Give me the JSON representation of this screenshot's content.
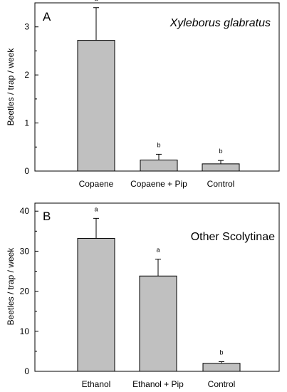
{
  "chart_data": [
    {
      "type": "bar",
      "panel_label": "A",
      "title": "Xyleborus glabratus",
      "title_italic": true,
      "ylabel": "Beetles / trap / week",
      "categories": [
        "Copaene",
        "Copaene + Pip",
        "Control"
      ],
      "values": [
        2.72,
        0.23,
        0.15
      ],
      "errors": [
        0.68,
        0.12,
        0.07
      ],
      "significance": [
        "a",
        "b",
        "b"
      ],
      "ylim": [
        0,
        3.5
      ],
      "yticks": [
        0,
        1,
        2,
        3
      ],
      "yticks_minor": [
        0.5,
        1.5,
        2.5
      ],
      "bar_color": "#c0c0c0",
      "grid": false
    },
    {
      "type": "bar",
      "panel_label": "B",
      "title": "Other Scolytinae",
      "title_italic": false,
      "ylabel": "Beetles / trap / week",
      "categories": [
        "Ethanol",
        "Ethanol + Pip",
        "Control"
      ],
      "values": [
        33.2,
        23.8,
        2.0
      ],
      "errors": [
        5.0,
        4.2,
        0.4
      ],
      "significance": [
        "a",
        "a",
        "b"
      ],
      "ylim": [
        0,
        42
      ],
      "yticks": [
        0,
        10,
        20,
        30,
        40
      ],
      "yticks_minor": [
        5,
        15,
        25,
        35
      ],
      "bar_color": "#c0c0c0",
      "grid": false
    }
  ]
}
